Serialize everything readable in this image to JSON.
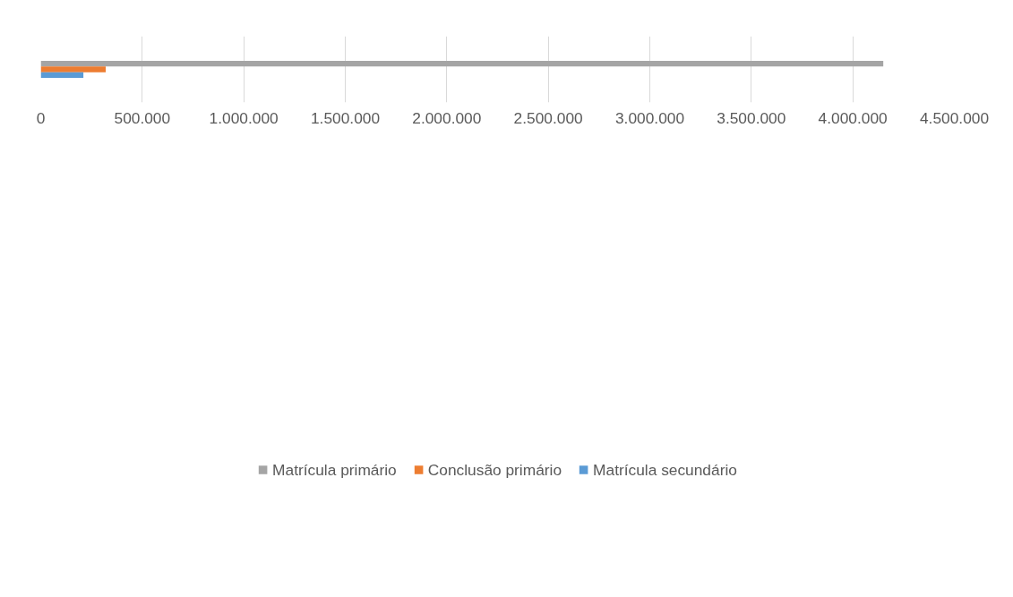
{
  "chart_data": {
    "type": "bar",
    "orientation": "horizontal",
    "categories": [
      null
    ],
    "series": [
      {
        "name": "Matrícula primário",
        "color": "#a5a5a5",
        "values": [
          4150000
        ]
      },
      {
        "name": "Conclusão primário",
        "color": "#ed7d31",
        "values": [
          320000
        ]
      },
      {
        "name": "Matrícula secundário",
        "color": "#5b9bd5",
        "values": [
          210000
        ]
      }
    ],
    "xlim": [
      0,
      4500000
    ],
    "xticks": [
      0,
      {
        "value": 500000,
        "label": "500.000"
      },
      {
        "value": 1000000,
        "label": "1.000.000"
      },
      {
        "value": 1500000,
        "label": "1.500.000"
      },
      {
        "value": 2000000,
        "label": "2.000.000"
      },
      {
        "value": 2500000,
        "label": "2.500.000"
      },
      {
        "value": 3000000,
        "label": "3.000.000"
      },
      {
        "value": 3500000,
        "label": "3.500.000"
      },
      {
        "value": 4000000,
        "label": "4.000.000"
      },
      {
        "value": 4500000,
        "label": "4.500.000"
      }
    ],
    "grid": "x",
    "legend": "bottom",
    "tick_labels": "x"
  }
}
